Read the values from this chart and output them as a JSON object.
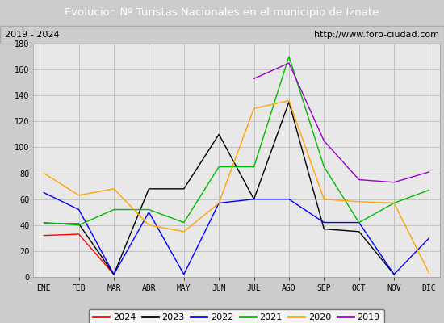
{
  "title": "Evolucion Nº Turistas Nacionales en el municipio de Iznate",
  "subtitle_left": "2019 - 2024",
  "subtitle_right": "http://www.foro-ciudad.com",
  "title_bg_color": "#4f81c7",
  "title_text_color": "#ffffff",
  "subtitle_bg_color": "#e8e8e8",
  "plot_bg_color": "#e8e8e8",
  "months": [
    "ENE",
    "FEB",
    "MAR",
    "ABR",
    "MAY",
    "JUN",
    "JUL",
    "AGO",
    "SEP",
    "OCT",
    "NOV",
    "DIC"
  ],
  "ylim": [
    0,
    180
  ],
  "yticks": [
    0,
    20,
    40,
    60,
    80,
    100,
    120,
    140,
    160,
    180
  ],
  "series": {
    "2024": {
      "color": "#ff0000",
      "values": [
        32,
        33,
        2,
        null,
        null,
        null,
        null,
        null,
        null,
        null,
        null,
        null
      ]
    },
    "2023": {
      "color": "#000000",
      "values": [
        41,
        41,
        2,
        68,
        68,
        110,
        60,
        135,
        37,
        35,
        2,
        null
      ]
    },
    "2022": {
      "color": "#0000ff",
      "values": [
        65,
        52,
        2,
        50,
        2,
        57,
        60,
        60,
        42,
        42,
        2,
        30
      ]
    },
    "2021": {
      "color": "#00bb00",
      "values": [
        42,
        40,
        52,
        52,
        42,
        85,
        85,
        170,
        85,
        42,
        57,
        67
      ]
    },
    "2020": {
      "color": "#ffa500",
      "values": [
        80,
        63,
        68,
        40,
        35,
        57,
        130,
        136,
        60,
        58,
        57,
        3
      ]
    },
    "2019": {
      "color": "#9900cc",
      "values": [
        null,
        null,
        null,
        null,
        null,
        null,
        153,
        165,
        105,
        75,
        73,
        81
      ]
    }
  },
  "legend_order": [
    "2024",
    "2023",
    "2022",
    "2021",
    "2020",
    "2019"
  ]
}
